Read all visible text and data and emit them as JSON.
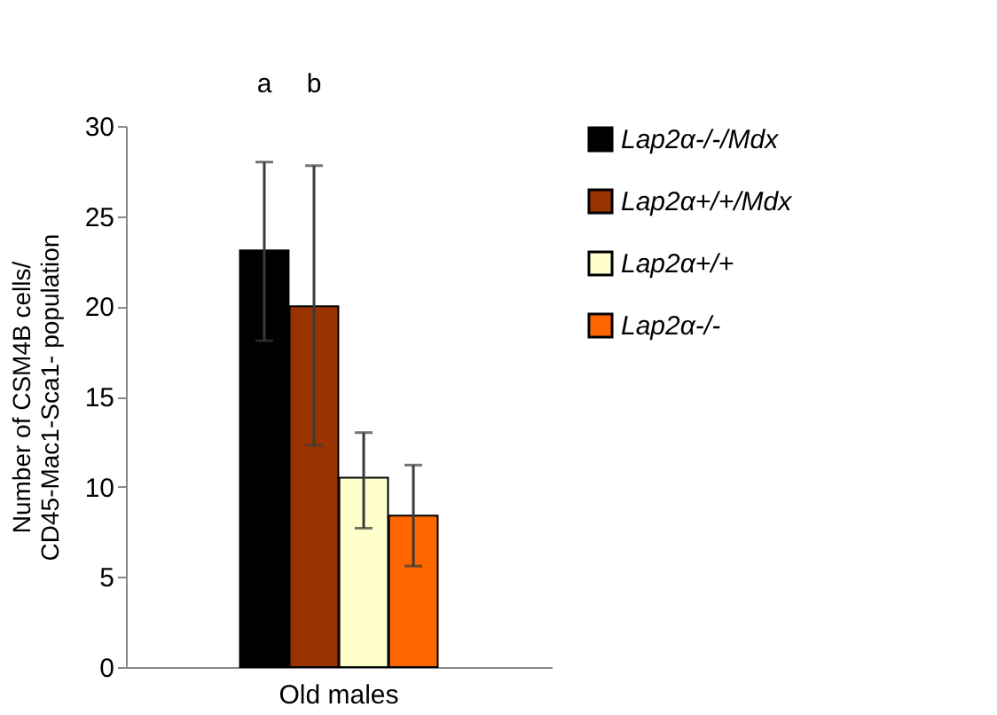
{
  "chart_data": {
    "type": "bar",
    "categories": [
      "Old males"
    ],
    "ylabel": "Number of CSM4B cells/\nCD45-Mac1-Sca1- population",
    "ylim": [
      0,
      30
    ],
    "yticks": [
      0,
      5,
      10,
      15,
      20,
      25,
      30
    ],
    "series": [
      {
        "name": "Lap2α-/-/Mdx",
        "color": "#000000",
        "values": [
          23.1
        ],
        "errors": [
          [
            18.1,
            28.0
          ]
        ]
      },
      {
        "name": "Lap2α+/+/Mdx",
        "color": "#993300",
        "values": [
          20.0
        ],
        "errors": [
          [
            12.3,
            27.8
          ]
        ]
      },
      {
        "name": "Lap2α+/+",
        "color": "#ffffcc",
        "values": [
          10.5
        ],
        "errors": [
          [
            7.7,
            13.0
          ]
        ]
      },
      {
        "name": "Lap2α-/-",
        "color": "#ff6600",
        "values": [
          8.4
        ],
        "errors": [
          [
            5.6,
            11.2
          ]
        ]
      }
    ],
    "annotations": [
      "a",
      "b"
    ],
    "legend": "right",
    "grid": false
  }
}
